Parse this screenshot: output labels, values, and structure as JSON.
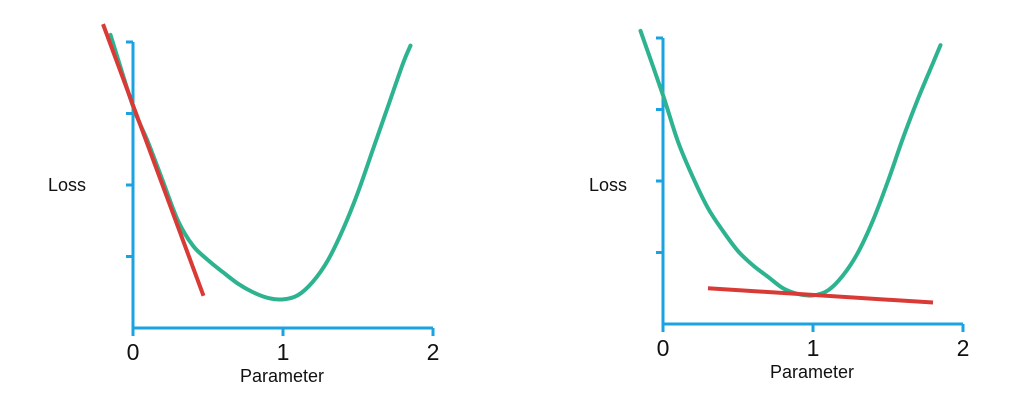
{
  "colors": {
    "axis": "#1aa3e0",
    "curve": "#2db38f",
    "tangent": "#d93a36"
  },
  "chart_data": [
    {
      "type": "line",
      "xlabel": "Parameter",
      "ylabel": "Loss",
      "x_ticks": [
        "0",
        "1",
        "2"
      ],
      "xlim": [
        0,
        2
      ],
      "ylim": [
        0,
        4
      ],
      "series": [
        {
          "role": "loss-curve",
          "x": [
            -0.15,
            0,
            0.1,
            0.2,
            0.3,
            0.4,
            0.5,
            0.6,
            0.7,
            0.8,
            0.9,
            1.0,
            1.1,
            1.2,
            1.3,
            1.4,
            1.5,
            1.6,
            1.7,
            1.8,
            1.85
          ],
          "y": [
            4.1,
            3.1,
            2.6,
            2.05,
            1.5,
            1.15,
            0.95,
            0.78,
            0.62,
            0.5,
            0.42,
            0.4,
            0.46,
            0.65,
            0.95,
            1.38,
            1.9,
            2.5,
            3.1,
            3.7,
            3.95
          ]
        },
        {
          "role": "tangent-line",
          "x": [
            -0.2,
            0.47
          ],
          "y": [
            4.25,
            0.45
          ]
        }
      ]
    },
    {
      "type": "line",
      "xlabel": "Parameter",
      "ylabel": "Loss",
      "x_ticks": [
        "0",
        "1",
        "2"
      ],
      "xlim": [
        0,
        2
      ],
      "ylim": [
        0,
        4
      ],
      "series": [
        {
          "role": "loss-curve",
          "x": [
            -0.15,
            0,
            0.1,
            0.2,
            0.3,
            0.4,
            0.5,
            0.6,
            0.7,
            0.8,
            0.9,
            1.0,
            1.1,
            1.2,
            1.3,
            1.4,
            1.5,
            1.6,
            1.7,
            1.8,
            1.85
          ],
          "y": [
            4.1,
            3.2,
            2.55,
            2.05,
            1.62,
            1.3,
            1.02,
            0.82,
            0.66,
            0.5,
            0.42,
            0.4,
            0.47,
            0.68,
            1.0,
            1.45,
            2.0,
            2.6,
            3.15,
            3.65,
            3.9
          ]
        },
        {
          "role": "tangent-line",
          "x": [
            0.3,
            1.8
          ],
          "y": [
            0.5,
            0.3
          ]
        }
      ]
    }
  ]
}
